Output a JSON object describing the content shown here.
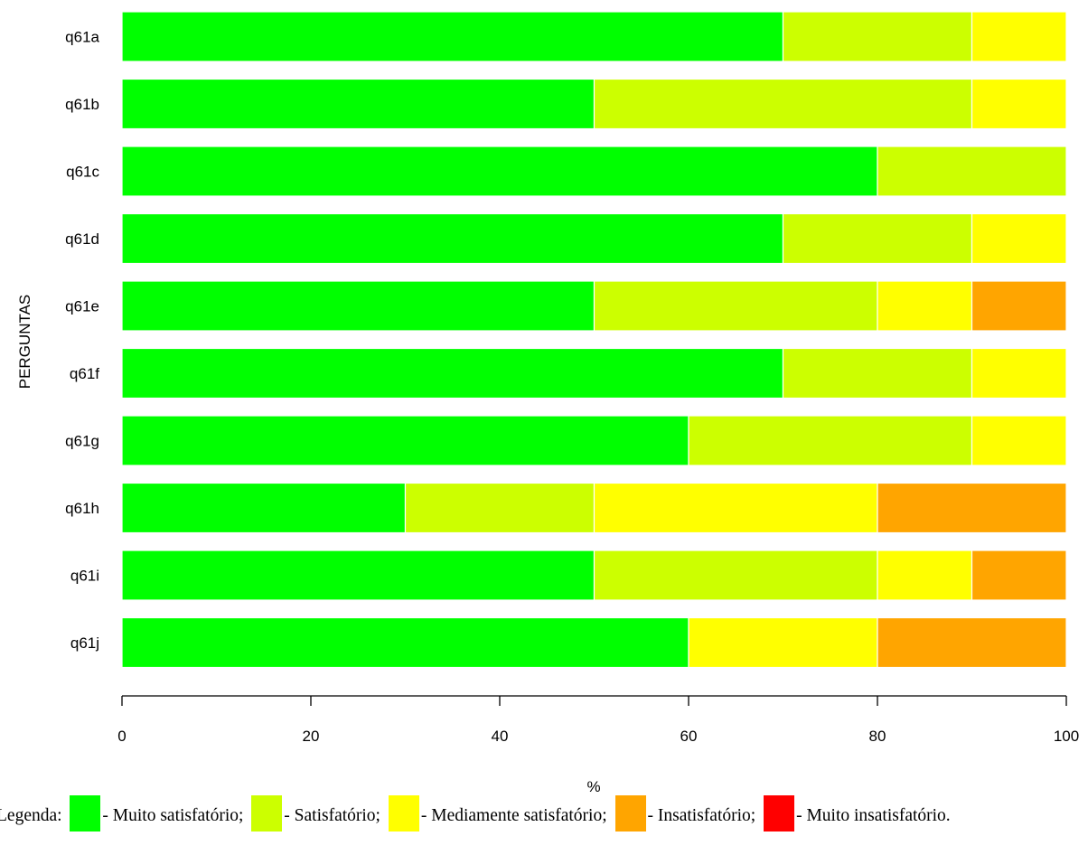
{
  "chart_data": {
    "type": "bar",
    "orientation": "horizontal",
    "stacked": true,
    "ylabel": "PERGUNTAS",
    "xlabel": "%",
    "xlim": [
      0,
      100
    ],
    "xticks": [
      "0",
      "20",
      "40",
      "60",
      "80",
      "100"
    ],
    "grid": false,
    "categories": [
      "q61a",
      "q61b",
      "q61c",
      "q61d",
      "q61e",
      "q61f",
      "q61g",
      "q61h",
      "q61i",
      "q61j"
    ],
    "series": [
      {
        "name": "Muito satisfatório",
        "color": "#00ff00",
        "values": [
          70,
          50,
          80,
          70,
          50,
          70,
          60,
          30,
          50,
          60
        ]
      },
      {
        "name": "Satisfatório",
        "color": "#ccff00",
        "values": [
          20,
          40,
          20,
          20,
          30,
          20,
          30,
          20,
          30,
          0
        ]
      },
      {
        "name": "Mediamente satisfatório",
        "color": "#ffff00",
        "values": [
          10,
          10,
          0,
          10,
          10,
          10,
          10,
          30,
          10,
          20
        ]
      },
      {
        "name": "Insatisfatório",
        "color": "#ffa500",
        "values": [
          0,
          0,
          0,
          0,
          10,
          0,
          0,
          20,
          10,
          20
        ]
      },
      {
        "name": "Muito insatisfatório",
        "color": "#ff0000",
        "values": [
          0,
          0,
          0,
          0,
          0,
          0,
          0,
          0,
          0,
          0
        ]
      }
    ]
  },
  "legend": {
    "prefix": "Legenda:",
    "items": [
      {
        "text": "- Muito satisfatório;",
        "color": "#00ff00",
        "icon": "swatch-green"
      },
      {
        "text": "- Satisfatório;",
        "color": "#ccff00",
        "icon": "swatch-lime"
      },
      {
        "text": "- Mediamente satisfatório;",
        "color": "#ffff00",
        "icon": "swatch-yellow"
      },
      {
        "text": "- Insatisfatório;",
        "color": "#ffa500",
        "icon": "swatch-orange"
      },
      {
        "text": "- Muito insatisfatório.",
        "color": "#ff0000",
        "icon": "swatch-red"
      }
    ]
  }
}
